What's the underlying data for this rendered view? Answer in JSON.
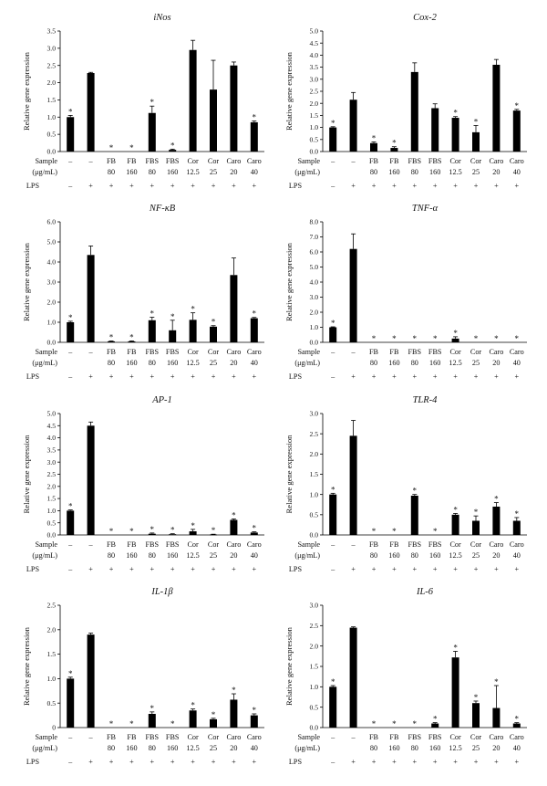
{
  "sample_row": {
    "label_line1": "Sample",
    "label_line2": "(μg/mL)",
    "name_line": [
      "–",
      "–",
      "FB",
      "FB",
      "FBS",
      "FBS",
      "Cor",
      "Cor",
      "Caro",
      "Caro"
    ],
    "dose_line": [
      "",
      "",
      "80",
      "160",
      "80",
      "160",
      "12.5",
      "25",
      "20",
      "40"
    ]
  },
  "lps_row": {
    "label": "LPS",
    "values": [
      "–",
      "+",
      "+",
      "+",
      "+",
      "+",
      "+",
      "+",
      "+",
      "+"
    ]
  },
  "significance_marker": "*",
  "bar_color": "#000000",
  "chart_data": [
    {
      "type": "bar",
      "title": "iNos",
      "ylabel": "Relative gene expression",
      "ylim": [
        0,
        3.5
      ],
      "yticks": [
        "0.0",
        "0.5",
        "1.0",
        "1.5",
        "2.0",
        "2.5",
        "3.0",
        "3.5"
      ],
      "values": [
        1.0,
        2.28,
        0.0,
        0.0,
        1.12,
        0.05,
        2.95,
        1.8,
        2.5,
        0.85
      ],
      "errors": [
        0.05,
        0.02,
        0.0,
        0.0,
        0.2,
        0.02,
        0.28,
        0.85,
        0.1,
        0.04
      ],
      "significant": [
        true,
        false,
        true,
        true,
        true,
        true,
        false,
        false,
        false,
        true
      ]
    },
    {
      "type": "bar",
      "title": "Cox-2",
      "ylabel": "Relative gene expression",
      "ylim": [
        0,
        5.0
      ],
      "yticks": [
        "0.0",
        "0.5",
        "1.0",
        "1.5",
        "2.0",
        "2.5",
        "3.0",
        "3.5",
        "4.0",
        "4.5",
        "5.0"
      ],
      "values": [
        1.0,
        2.15,
        0.35,
        0.15,
        3.3,
        1.8,
        1.4,
        0.8,
        3.6,
        1.7
      ],
      "errors": [
        0.03,
        0.3,
        0.05,
        0.05,
        0.38,
        0.18,
        0.05,
        0.28,
        0.22,
        0.05
      ],
      "significant": [
        true,
        false,
        true,
        true,
        false,
        false,
        true,
        true,
        false,
        true
      ]
    },
    {
      "type": "bar",
      "title": "NF-κB",
      "ylabel": "Relative gene expression",
      "ylim": [
        0,
        6.0
      ],
      "yticks": [
        "0.0",
        "1.0",
        "2.0",
        "3.0",
        "4.0",
        "5.0",
        "6.0"
      ],
      "values": [
        1.0,
        4.35,
        0.05,
        0.05,
        1.1,
        0.6,
        1.12,
        0.78,
        3.35,
        1.2
      ],
      "errors": [
        0.05,
        0.45,
        0.02,
        0.02,
        0.15,
        0.5,
        0.35,
        0.05,
        0.85,
        0.04
      ],
      "significant": [
        true,
        false,
        true,
        true,
        true,
        true,
        true,
        true,
        false,
        true
      ]
    },
    {
      "type": "bar",
      "title": "TNF-α",
      "ylabel": "Relative gene expression",
      "ylim": [
        0,
        8.0
      ],
      "yticks": [
        "0.0",
        "1.0",
        "2.0",
        "3.0",
        "4.0",
        "5.0",
        "6.0",
        "7.0",
        "8.0"
      ],
      "values": [
        1.0,
        6.2,
        0.0,
        0.0,
        0.0,
        0.0,
        0.25,
        0.0,
        0.0,
        0.0
      ],
      "errors": [
        0.03,
        1.0,
        0.0,
        0.0,
        0.0,
        0.0,
        0.12,
        0.0,
        0.0,
        0.0
      ],
      "significant": [
        true,
        false,
        true,
        true,
        true,
        true,
        true,
        true,
        true,
        true
      ]
    },
    {
      "type": "bar",
      "title": "AP-1",
      "ylabel": "Relative gene expression",
      "ylim": [
        0,
        5.0
      ],
      "yticks": [
        "0.0",
        "0.5",
        "1.0",
        "1.5",
        "2.0",
        "2.5",
        "3.0",
        "3.5",
        "4.0",
        "4.5",
        "5.0"
      ],
      "values": [
        1.0,
        4.5,
        0.0,
        0.0,
        0.05,
        0.03,
        0.15,
        0.02,
        0.62,
        0.1
      ],
      "errors": [
        0.03,
        0.15,
        0.0,
        0.0,
        0.03,
        0.02,
        0.08,
        0.01,
        0.04,
        0.03
      ],
      "significant": [
        true,
        false,
        true,
        true,
        true,
        true,
        true,
        true,
        true,
        true
      ]
    },
    {
      "type": "bar",
      "title": "TLR-4",
      "ylabel": "Relative gene expression",
      "ylim": [
        0,
        3.0
      ],
      "yticks": [
        "0.0",
        "0.5",
        "1.0",
        "1.5",
        "2.0",
        "2.5",
        "3.0"
      ],
      "values": [
        1.0,
        2.45,
        0.0,
        0.0,
        0.97,
        0.0,
        0.5,
        0.35,
        0.7,
        0.35
      ],
      "errors": [
        0.03,
        0.38,
        0.0,
        0.0,
        0.03,
        0.0,
        0.03,
        0.12,
        0.1,
        0.08
      ],
      "significant": [
        true,
        false,
        true,
        true,
        true,
        true,
        true,
        true,
        true,
        true
      ]
    },
    {
      "type": "bar",
      "title": "IL-1β",
      "ylabel": "Relative gene expression",
      "ylim": [
        0,
        2.5
      ],
      "yticks": [
        "0",
        "0.5",
        "1.0",
        "1.5",
        "2.0",
        "2.5"
      ],
      "values": [
        1.0,
        1.9,
        0.0,
        0.0,
        0.28,
        0.0,
        0.35,
        0.17,
        0.57,
        0.25
      ],
      "errors": [
        0.03,
        0.03,
        0.0,
        0.0,
        0.04,
        0.0,
        0.03,
        0.02,
        0.12,
        0.03
      ],
      "significant": [
        true,
        false,
        true,
        true,
        true,
        true,
        true,
        true,
        true,
        true
      ]
    },
    {
      "type": "bar",
      "title": "IL-6",
      "ylabel": "Relative gene expression",
      "ylim": [
        0,
        3.0
      ],
      "yticks": [
        "0.0",
        "0.5",
        "1.0",
        "1.5",
        "2.0",
        "2.5",
        "3.0"
      ],
      "values": [
        1.0,
        2.45,
        0.0,
        0.0,
        0.0,
        0.1,
        1.72,
        0.6,
        0.48,
        0.1
      ],
      "errors": [
        0.03,
        0.02,
        0.0,
        0.0,
        0.0,
        0.02,
        0.15,
        0.05,
        0.55,
        0.02
      ],
      "significant": [
        true,
        false,
        true,
        true,
        true,
        true,
        true,
        true,
        true,
        true
      ]
    }
  ]
}
